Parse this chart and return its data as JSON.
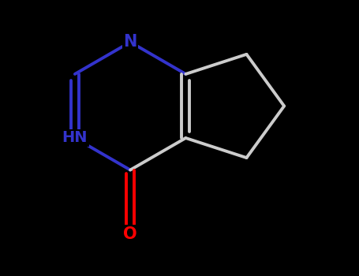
{
  "background_color": "#000000",
  "bond_color": "#cccccc",
  "nitrogen_color": "#3333cc",
  "oxygen_color": "#ff0000",
  "bond_width": 2.8,
  "figsize": [
    4.55,
    3.5
  ],
  "dpi": 100,
  "N1_label": "N",
  "N3_label": "HN",
  "O_label": "O",
  "label_fontsize": 15,
  "label_fontsize_hn": 14
}
